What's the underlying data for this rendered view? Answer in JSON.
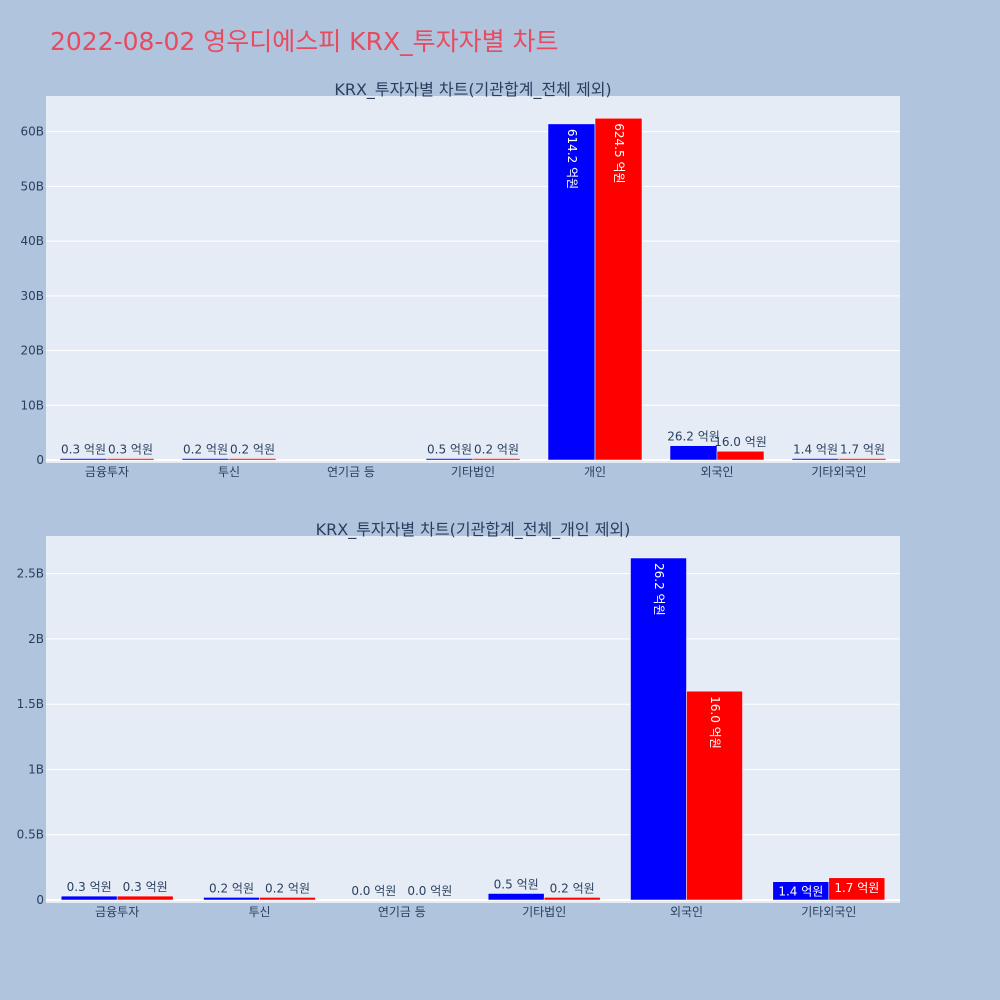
{
  "page_title": "2022-08-02 영우디에스피 KRX_투자자별 차트",
  "colors": {
    "background": "#b0c4de",
    "plot_background": "#e5ecf6",
    "gridline": "#ffffff",
    "title": "#e84a5f",
    "text": "#2a3f5f",
    "series_a": "#0000ff",
    "series_b": "#ff0000"
  },
  "chart_data": [
    {
      "type": "bar",
      "title": "KRX_투자자별 차트(기관합계_전체 제외)",
      "categories": [
        "금융투자",
        "투신",
        "연기금 등",
        "기타법인",
        "개인",
        "외국인",
        "기타외국인"
      ],
      "ytick_labels": [
        "0",
        "10B",
        "20B",
        "30B",
        "40B",
        "50B",
        "60B"
      ],
      "ytick_values": [
        0,
        10000000000,
        20000000000,
        30000000000,
        40000000000,
        50000000000,
        60000000000
      ],
      "ylim": [
        0,
        62500000000
      ],
      "grid": true,
      "series": [
        {
          "color": "#0000ff",
          "values": [
            30000000,
            20000000,
            0,
            50000000,
            61420000000,
            2620000000,
            140000000
          ],
          "labels": [
            "0.3 억원",
            "0.2 억원",
            "",
            "0.5 억원",
            "614.2 억원",
            "26.2 억원",
            "1.4 억원"
          ]
        },
        {
          "color": "#ff0000",
          "values": [
            30000000,
            20000000,
            0,
            20000000,
            62450000000,
            1600000000,
            170000000
          ],
          "labels": [
            "0.3 억원",
            "0.2 억원",
            "",
            "0.2 억원",
            "624.5 억원",
            "16.0 억원",
            "1.7 억원"
          ]
        }
      ]
    },
    {
      "type": "bar",
      "title": "KRX_투자자별 차트(기관합계_전체_개인 제외)",
      "categories": [
        "금융투자",
        "투신",
        "연기금 등",
        "기타법인",
        "외국인",
        "기타외국인"
      ],
      "ytick_labels": [
        "0",
        "0.5B",
        "1B",
        "1.5B",
        "2B",
        "2.5B"
      ],
      "ytick_values": [
        0,
        500000000,
        1000000000,
        1500000000,
        2000000000,
        2500000000
      ],
      "ylim": [
        0,
        2620000000
      ],
      "grid": true,
      "series": [
        {
          "color": "#0000ff",
          "values": [
            30000000,
            20000000,
            0,
            50000000,
            2620000000,
            140000000
          ],
          "labels": [
            "0.3 억원",
            "0.2 억원",
            "0.0 억원",
            "0.5 억원",
            "26.2 억원",
            "1.4 억원"
          ]
        },
        {
          "color": "#ff0000",
          "values": [
            30000000,
            20000000,
            0,
            20000000,
            1600000000,
            170000000
          ],
          "labels": [
            "0.3 억원",
            "0.2 억원",
            "0.0 억원",
            "0.2 억원",
            "16.0 억원",
            "1.7 억원"
          ]
        }
      ]
    }
  ]
}
